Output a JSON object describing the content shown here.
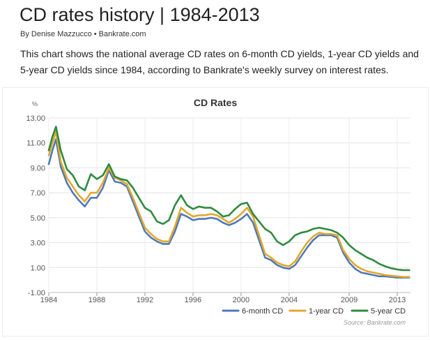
{
  "article": {
    "title": "CD rates history | 1984-2013",
    "byline": "By Denise Mazzucco • Bankrate.com",
    "intro": "This chart shows the national average CD rates on 6-month CD yields, 1-year CD yields and 5-year CD yields since 1984, according to Bankrate's weekly survey on interest rates."
  },
  "chart_data": {
    "type": "line",
    "title": "CD Rates",
    "y_unit": "%",
    "ylim": [
      -1,
      13
    ],
    "y_ticks": [
      "13.00",
      "11.00",
      "9.00",
      "7.00",
      "5.00",
      "3.00",
      "1.00",
      "-1.00"
    ],
    "xlim": [
      1984,
      2014.1
    ],
    "x_ticks": [
      "1984",
      "1988",
      "1992",
      "1996",
      "2000",
      "2004",
      "2009",
      "2013"
    ],
    "grid": true,
    "legend_position": "bottom-right",
    "source": "Source: Bankrate.com",
    "x": [
      1984.0,
      1984.3,
      1984.6,
      1985.0,
      1985.5,
      1986.0,
      1986.5,
      1987.0,
      1987.5,
      1988.0,
      1988.5,
      1989.0,
      1989.5,
      1990.0,
      1990.5,
      1991.0,
      1991.5,
      1992.0,
      1992.5,
      1993.0,
      1993.5,
      1994.0,
      1994.5,
      1995.0,
      1995.5,
      1996.0,
      1996.5,
      1997.0,
      1997.5,
      1998.0,
      1998.5,
      1999.0,
      1999.5,
      2000.0,
      2000.5,
      2001.0,
      2001.5,
      2002.0,
      2002.5,
      2003.0,
      2003.5,
      2004.0,
      2004.5,
      2005.0,
      2005.5,
      2006.0,
      2006.5,
      2007.0,
      2007.5,
      2008.0,
      2008.5,
      2009.0,
      2009.5,
      2010.0,
      2010.5,
      2011.0,
      2011.5,
      2012.0,
      2012.5,
      2013.0,
      2013.5,
      2014.0
    ],
    "series": [
      {
        "name": "6-month CD",
        "color": "#4f79b8",
        "values": [
          9.3,
          10.4,
          11.3,
          9.1,
          7.8,
          7.0,
          6.4,
          5.9,
          6.6,
          6.6,
          7.4,
          8.8,
          7.9,
          7.8,
          7.5,
          6.3,
          5.1,
          3.9,
          3.4,
          3.1,
          2.9,
          2.9,
          3.9,
          5.3,
          5.1,
          4.8,
          4.9,
          4.9,
          5.0,
          4.9,
          4.6,
          4.4,
          4.6,
          4.9,
          5.3,
          4.6,
          3.2,
          1.8,
          1.6,
          1.2,
          1.0,
          0.9,
          1.2,
          1.9,
          2.6,
          3.2,
          3.6,
          3.6,
          3.6,
          3.4,
          2.2,
          1.4,
          0.9,
          0.6,
          0.5,
          0.4,
          0.3,
          0.3,
          0.25,
          0.2,
          0.2,
          0.2
        ]
      },
      {
        "name": "1-year CD",
        "color": "#e1a82a",
        "values": [
          10.0,
          11.0,
          11.9,
          9.5,
          8.2,
          7.5,
          6.8,
          6.3,
          7.0,
          7.0,
          7.8,
          9.0,
          8.2,
          8.0,
          7.7,
          6.6,
          5.4,
          4.2,
          3.7,
          3.3,
          3.1,
          3.1,
          4.3,
          5.8,
          5.4,
          5.1,
          5.2,
          5.2,
          5.3,
          5.2,
          4.9,
          4.6,
          4.9,
          5.3,
          5.8,
          5.1,
          3.6,
          2.1,
          1.8,
          1.4,
          1.2,
          1.1,
          1.5,
          2.3,
          3.0,
          3.5,
          3.8,
          3.7,
          3.7,
          3.6,
          2.4,
          1.7,
          1.2,
          0.9,
          0.7,
          0.6,
          0.5,
          0.4,
          0.35,
          0.3,
          0.25,
          0.25
        ]
      },
      {
        "name": "5-year CD",
        "color": "#2e8b3e",
        "values": [
          10.4,
          11.5,
          12.3,
          10.4,
          8.9,
          8.4,
          7.5,
          7.2,
          8.5,
          8.1,
          8.4,
          9.3,
          8.3,
          8.1,
          8.0,
          7.4,
          6.6,
          5.8,
          5.5,
          4.7,
          4.5,
          4.8,
          6.0,
          6.8,
          6.0,
          5.7,
          5.9,
          5.8,
          5.8,
          5.5,
          5.1,
          5.2,
          5.7,
          6.1,
          6.2,
          5.3,
          4.7,
          4.1,
          3.8,
          3.1,
          2.8,
          3.1,
          3.6,
          3.8,
          3.9,
          4.1,
          4.2,
          4.1,
          4.0,
          3.8,
          3.4,
          2.8,
          2.4,
          2.1,
          1.8,
          1.6,
          1.3,
          1.1,
          0.95,
          0.85,
          0.8,
          0.8
        ]
      }
    ]
  }
}
